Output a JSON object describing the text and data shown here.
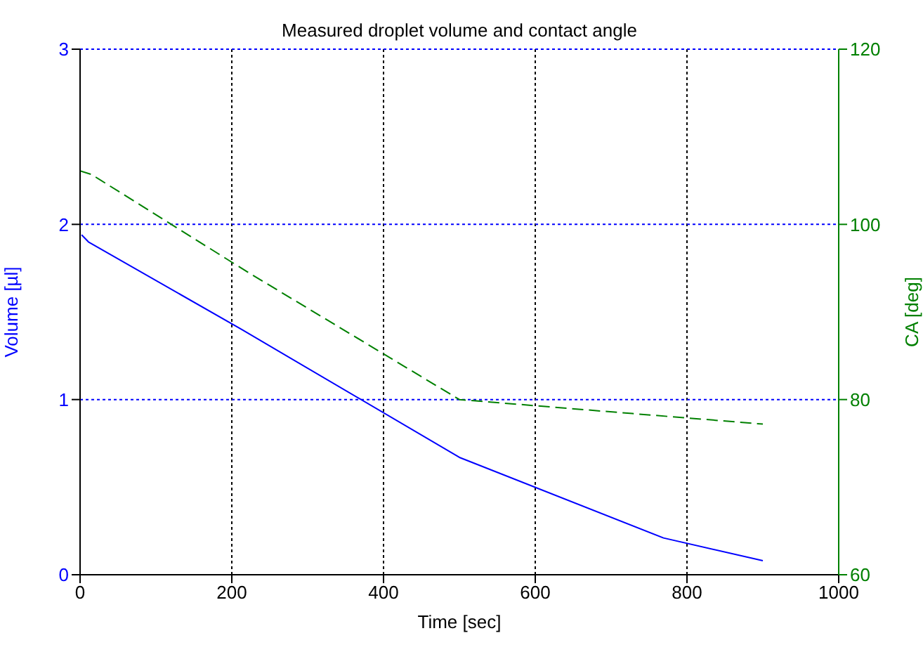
{
  "chart_data": {
    "type": "line",
    "title": "Measured droplet volume and contact angle",
    "xlabel": "Time [sec]",
    "ylabel": "Volume [µl]",
    "y2label": "CA [deg]",
    "series": [
      {
        "color": "#0000ff",
        "x": [
          2,
          11,
          213,
          500,
          769,
          900
        ],
        "values": [
          1.94,
          1.9,
          1.4,
          0.67,
          0.21,
          0.08
        ]
      },
      {
        "color": "#008000",
        "axis": "y2",
        "line_style": "dashed",
        "x": [
          0,
          15,
          220,
          500,
          728,
          900
        ],
        "values": [
          106.1,
          105.7,
          94.6,
          80,
          78.4,
          77.2
        ]
      }
    ],
    "xlim": [
      0,
      1000
    ],
    "xticks": [
      0,
      200,
      400,
      600,
      800,
      1000
    ],
    "ylim": [
      0,
      3
    ],
    "yticks": [
      0,
      1,
      2,
      3
    ],
    "y2lim": [
      60,
      120
    ],
    "y2ticks": [
      60,
      80,
      100,
      120
    ],
    "grid": true,
    "legend": false,
    "marker": "none"
  }
}
